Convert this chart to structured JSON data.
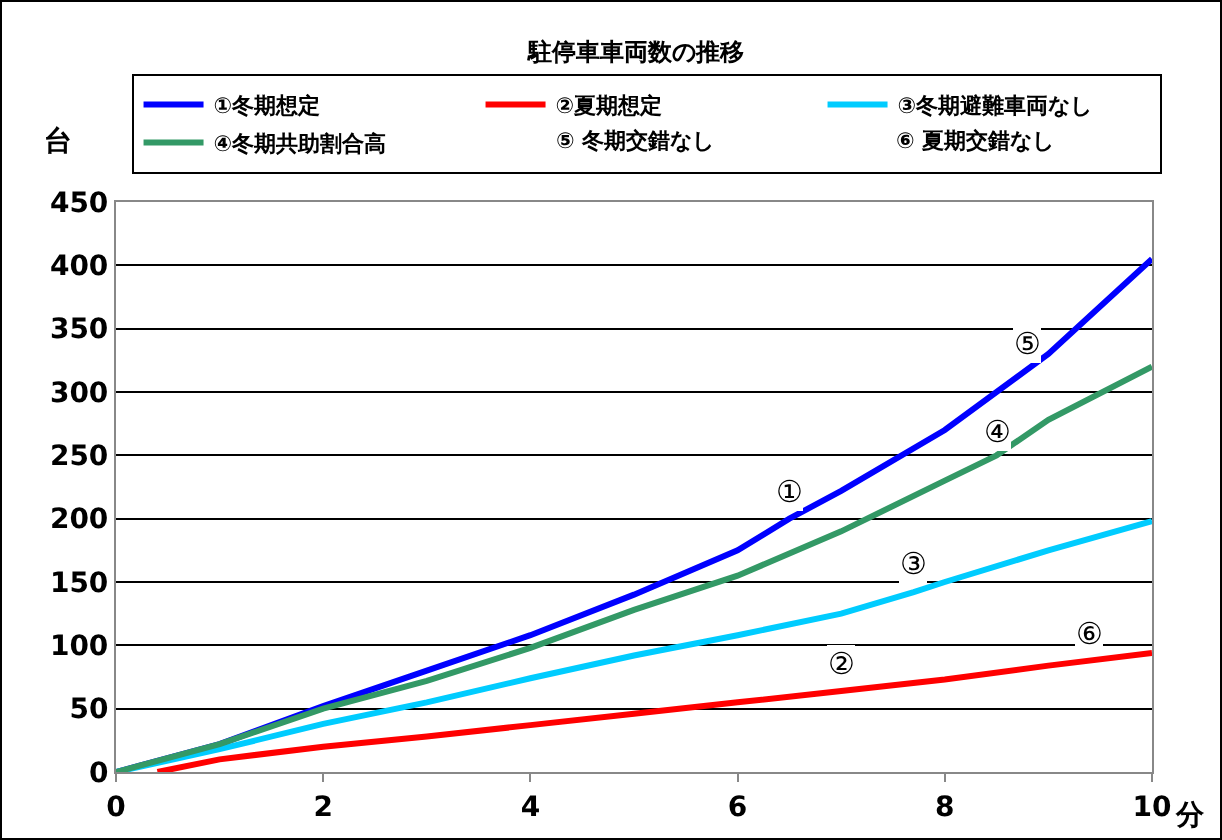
{
  "chart_data": {
    "type": "line",
    "title": "駐停車車両数の推移",
    "ylabel": "台",
    "xlabel": "分",
    "xlim": [
      0,
      10
    ],
    "xticks": [
      0,
      2,
      4,
      6,
      8,
      10
    ],
    "ylim": [
      0,
      450
    ],
    "yticks": [
      0,
      50,
      100,
      150,
      200,
      250,
      300,
      350,
      400,
      450
    ],
    "grid": "y",
    "legend": "top",
    "marker": "none",
    "line_style": "solid",
    "series": [
      {
        "name": "①冬期想定",
        "color": "#0000ff",
        "x": [
          0,
          1,
          2,
          3,
          4,
          5,
          6,
          6.5,
          7,
          8,
          9,
          10
        ],
        "values": [
          0,
          22,
          52,
          80,
          108,
          140,
          175,
          200,
          222,
          270,
          330,
          405
        ]
      },
      {
        "name": "②夏期想定",
        "color": "#ff0000",
        "x": [
          0.4,
          1,
          2,
          3,
          4,
          5,
          6,
          7,
          8,
          9,
          10
        ],
        "values": [
          0,
          10,
          20,
          28,
          37,
          46,
          55,
          64,
          73,
          84,
          94
        ]
      },
      {
        "name": "③冬期避難車両なし",
        "color": "#00ccff",
        "x": [
          0,
          1,
          2,
          3,
          4,
          5,
          6,
          7,
          7.7,
          8,
          9,
          10
        ],
        "values": [
          0,
          18,
          38,
          55,
          74,
          92,
          108,
          125,
          142,
          150,
          175,
          198
        ]
      },
      {
        "name": "④冬期共助割合高",
        "color": "#339966",
        "x": [
          0,
          1,
          2,
          3,
          4,
          5,
          6,
          7,
          8,
          8.5,
          9,
          10
        ],
        "values": [
          0,
          22,
          50,
          72,
          98,
          128,
          155,
          190,
          230,
          250,
          278,
          320
        ]
      }
    ],
    "annotations": [
      "⑤ 冬期交錯なし",
      "⑥ 夏期交錯なし",
      {
        "text": "①",
        "x": 6.5,
        "y": 200
      },
      {
        "text": "②",
        "x": 7,
        "y": 65
      },
      {
        "text": "③",
        "x": 7.7,
        "y": 143
      },
      {
        "text": "④",
        "x": 8.5,
        "y": 248
      },
      {
        "text": "⑤",
        "x": 8.8,
        "y": 318
      },
      {
        "text": "⑥",
        "x": 9.4,
        "y": 88
      }
    ]
  }
}
